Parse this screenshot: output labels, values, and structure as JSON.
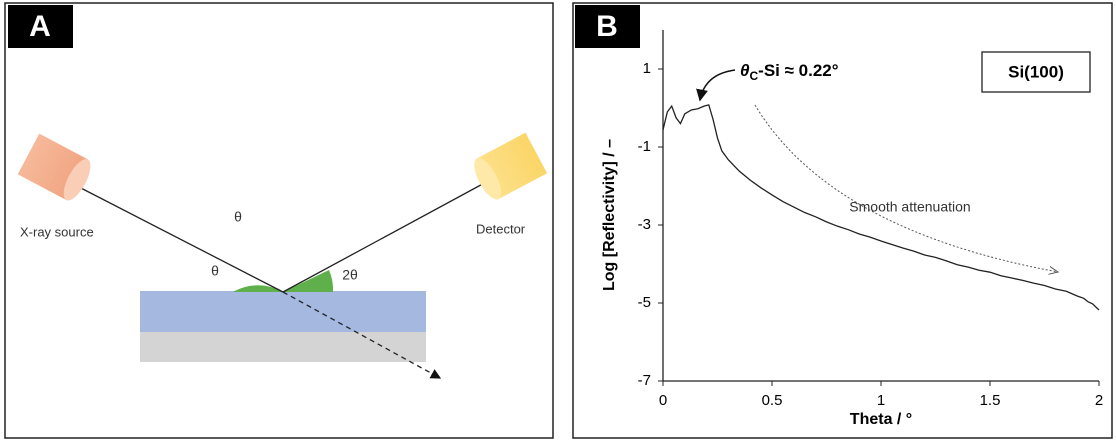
{
  "diagram": {
    "label": "A",
    "source": "X-ray source",
    "detector": "Detector",
    "theta_top": "θ",
    "theta_in": "θ",
    "two_theta": "2θ"
  },
  "chart_data": {
    "type": "line",
    "label": "B",
    "xlabel": "Theta / °",
    "ylabel": "Log [Reflectivity] / –",
    "legend_box": "Si(100)",
    "annotation": [
      "θ",
      "C",
      "-Si ≈ 0.22°"
    ],
    "note": "Smooth attenuation",
    "color": "#222222",
    "x": [
      0,
      0.02,
      0.04,
      0.06,
      0.08,
      0.1,
      0.13,
      0.16,
      0.19,
      0.21,
      0.23,
      0.25,
      0.27,
      0.3,
      0.35,
      0.4,
      0.45,
      0.5,
      0.55,
      0.6,
      0.65,
      0.7,
      0.75,
      0.8,
      0.85,
      0.9,
      0.95,
      1.0,
      1.05,
      1.1,
      1.15,
      1.2,
      1.25,
      1.3,
      1.35,
      1.4,
      1.45,
      1.5,
      1.55,
      1.6,
      1.65,
      1.7,
      1.75,
      1.8,
      1.85,
      1.9,
      1.93,
      1.95,
      1.97,
      2.0
    ],
    "values": [
      -0.56,
      -0.1,
      0.05,
      -0.25,
      -0.4,
      -0.15,
      -0.05,
      -0.02,
      0.05,
      0.08,
      -0.3,
      -0.77,
      -1.1,
      -1.33,
      -1.62,
      -1.85,
      -2.05,
      -2.23,
      -2.4,
      -2.54,
      -2.68,
      -2.79,
      -2.92,
      -3.03,
      -3.12,
      -3.23,
      -3.31,
      -3.41,
      -3.5,
      -3.59,
      -3.67,
      -3.77,
      -3.83,
      -3.92,
      -4.02,
      -4.08,
      -4.16,
      -4.21,
      -4.3,
      -4.36,
      -4.42,
      -4.49,
      -4.55,
      -4.64,
      -4.7,
      -4.82,
      -4.88,
      -4.97,
      -5.02,
      -5.18
    ],
    "xlim": [
      0,
      2
    ],
    "ylim": [
      -7,
      2
    ],
    "xticks": [
      0,
      0.5,
      1,
      1.5,
      2
    ],
    "yticks": [
      1,
      -1,
      -3,
      -5,
      -7
    ]
  }
}
